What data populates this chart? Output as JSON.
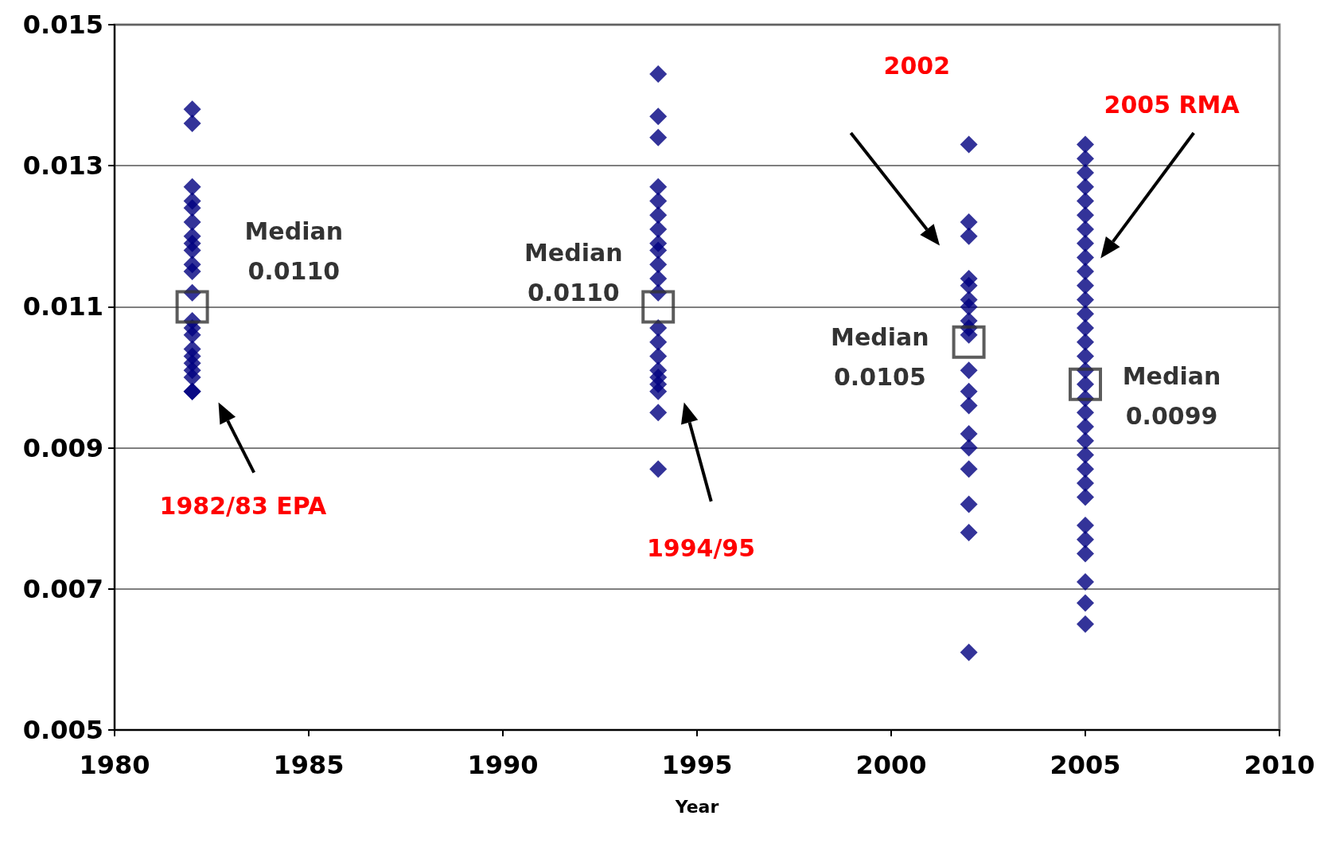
{
  "chart_data": {
    "type": "scatter",
    "xlabel": "Year",
    "xlim": [
      1980,
      2010
    ],
    "xticks": [
      1980,
      1985,
      1990,
      1995,
      2000,
      2005,
      2010
    ],
    "ylim": [
      0.005,
      0.015
    ],
    "yticks": [
      0.005,
      0.007,
      0.009,
      0.011,
      0.013,
      0.015
    ],
    "grid": "y",
    "marker": "diamond",
    "series": [
      {
        "color": "#000080",
        "x": [
          1982,
          1982,
          1982,
          1982,
          1982,
          1982,
          1982,
          1982,
          1982,
          1982,
          1982,
          1982,
          1982,
          1982,
          1982,
          1982,
          1982,
          1982,
          1982,
          1982,
          1982,
          1982,
          1994,
          1994,
          1994,
          1994,
          1994,
          1994,
          1994,
          1994,
          1994,
          1994,
          1994,
          1994,
          1994,
          1994,
          1994,
          1994,
          1994,
          1994,
          1994,
          1994,
          1994,
          2002,
          2002,
          2002,
          2002,
          2002,
          2002,
          2002,
          2002,
          2002,
          2002,
          2002,
          2002,
          2002,
          2002,
          2002,
          2002,
          2002,
          2002,
          2002,
          2005,
          2005,
          2005,
          2005,
          2005,
          2005,
          2005,
          2005,
          2005,
          2005,
          2005,
          2005,
          2005,
          2005,
          2005,
          2005,
          2005,
          2005,
          2005,
          2005,
          2005,
          2005,
          2005,
          2005,
          2005,
          2005,
          2005,
          2005,
          2005,
          2005,
          2005,
          2005
        ],
        "values": [
          0.0138,
          0.0136,
          0.0127,
          0.0125,
          0.0124,
          0.0122,
          0.012,
          0.0119,
          0.0118,
          0.0116,
          0.0115,
          0.0112,
          0.0108,
          0.0107,
          0.0106,
          0.0104,
          0.0103,
          0.0102,
          0.0101,
          0.01,
          0.0098,
          0.0098,
          0.0143,
          0.0137,
          0.0134,
          0.0127,
          0.0125,
          0.0123,
          0.0121,
          0.0119,
          0.0118,
          0.0116,
          0.0114,
          0.0112,
          0.0107,
          0.0105,
          0.0103,
          0.0101,
          0.01,
          0.0099,
          0.0098,
          0.0095,
          0.0087,
          0.0133,
          0.0122,
          0.012,
          0.0114,
          0.0113,
          0.0111,
          0.011,
          0.0108,
          0.0107,
          0.0106,
          0.0101,
          0.0098,
          0.0096,
          0.0092,
          0.009,
          0.0087,
          0.0082,
          0.0078,
          0.0061,
          0.0133,
          0.0131,
          0.0129,
          0.0127,
          0.0125,
          0.0123,
          0.0121,
          0.0119,
          0.0117,
          0.0115,
          0.0113,
          0.0111,
          0.0109,
          0.0107,
          0.0105,
          0.0103,
          0.0101,
          0.0099,
          0.0097,
          0.0095,
          0.0093,
          0.0091,
          0.0089,
          0.0087,
          0.0085,
          0.0083,
          0.0079,
          0.0077,
          0.0075,
          0.0071,
          0.0068,
          0.0065
        ]
      },
      {
        "color": "#333333",
        "marker": "square",
        "x": [
          1982,
          1994,
          2002,
          2005
        ],
        "values": [
          0.011,
          0.011,
          0.0105,
          0.0099
        ],
        "value_labels": [
          "Median\n0.0110",
          "Median\n0.0110",
          "Median\n0.0105",
          "Median\n0.0099"
        ]
      }
    ],
    "annotations": [
      "1982/83 EPA",
      "1994/95",
      "2002",
      "2005 RMA"
    ]
  }
}
